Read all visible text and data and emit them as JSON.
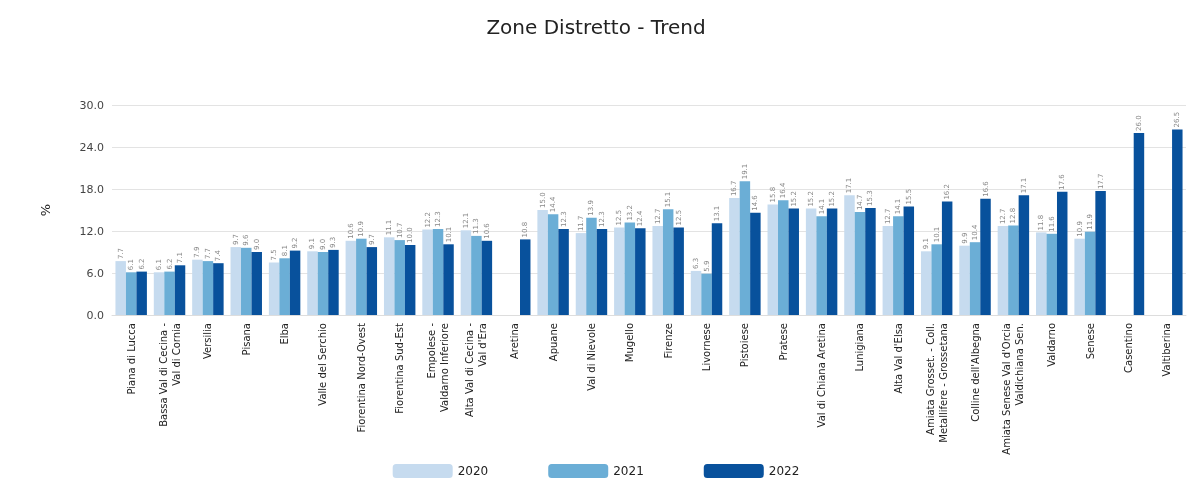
{
  "chart_data": {
    "type": "bar",
    "title": "Zone Distretto - Trend",
    "ylabel": "%",
    "categories": [
      "Piana di Lucca",
      "Bassa Val di Cecina -\nVal di Cornia",
      "Versilia",
      "Pisana",
      "Elba",
      "Valle del Serchio",
      "Fiorentina Nord-Ovest",
      "Fiorentina Sud-Est",
      "Empolese -\nValdarno Inferiore",
      "Alta Val di Cecina -\nVal d'Era",
      "Aretina",
      "Apuane",
      "Val di Nievole",
      "Mugello",
      "Firenze",
      "Livornese",
      "Pistoiese",
      "Pratese",
      "Val di Chiana Aretina",
      "Lunigiana",
      "Alta Val d'Elsa",
      "Amiata Grosset. - Coll.\nMetallifere - Grossetana",
      "Colline dell'Albegna",
      "Amiata Senese Val d'Orcia\nValdichiana Sen.",
      "Valdarno",
      "Senese",
      "Casentino",
      "Valtiberina"
    ],
    "series": [
      {
        "name": "2020",
        "color": "#c6dbef",
        "values": [
          7.7,
          6.1,
          7.9,
          9.7,
          7.5,
          9.1,
          10.6,
          11.1,
          12.2,
          12.1,
          null,
          15.0,
          11.7,
          12.5,
          12.7,
          6.3,
          16.7,
          15.8,
          15.2,
          17.1,
          12.7,
          9.1,
          9.9,
          12.7,
          11.8,
          10.9,
          null,
          null
        ],
        "value_labels": [
          "7.7",
          "6.1",
          "7.9",
          "9.7",
          "7.5",
          "9.1",
          "10.6",
          "11.1",
          "12.2",
          "12.1",
          null,
          "15.0",
          "11.7",
          "12.5",
          "12.7",
          "6.3",
          "16.7",
          "15.8",
          "15.2",
          "17.1",
          "12.7",
          "9.1",
          "9.9",
          "12.7",
          "11.8",
          "10.9",
          null,
          null
        ]
      },
      {
        "name": "2021",
        "color": "#6baed6",
        "values": [
          6.1,
          6.2,
          7.7,
          9.6,
          8.1,
          9.0,
          10.9,
          10.7,
          12.3,
          11.3,
          null,
          14.4,
          13.9,
          13.2,
          15.1,
          5.9,
          19.1,
          16.4,
          14.1,
          14.7,
          14.1,
          10.1,
          10.4,
          12.8,
          11.6,
          11.9,
          null,
          null
        ],
        "value_labels": [
          "6.1",
          "6.2",
          "7.7",
          "9.6",
          "8.1",
          "9.0",
          "10.9",
          "10.7",
          "12.3",
          "11.3",
          null,
          "14.4",
          "13.9",
          "13.2",
          "15.1",
          "5.9",
          "19.1",
          "16.4",
          "14.1",
          "14.7",
          "14.1",
          "10.1",
          "10.4",
          "12.8",
          "11.6",
          "11.9",
          null,
          null
        ]
      },
      {
        "name": "2022",
        "color": "#08519c",
        "values": [
          6.2,
          7.1,
          7.4,
          9.0,
          9.2,
          9.3,
          9.7,
          10.0,
          10.1,
          10.6,
          10.8,
          12.3,
          12.3,
          12.4,
          12.5,
          13.1,
          14.6,
          15.2,
          15.2,
          15.3,
          15.5,
          16.2,
          16.6,
          17.1,
          17.6,
          17.7,
          26.0,
          26.5
        ],
        "value_labels": [
          "6.2",
          "7.1",
          "7.4",
          "9.0",
          "9.2",
          "9.3",
          "9.7",
          "10.0",
          "10.1",
          "10.6",
          "10.8",
          "12.3",
          "12.3",
          "12.4",
          "12.5",
          "13.1",
          "14.6",
          "15.2",
          "15.2",
          "15.3",
          "15.5",
          "16.2",
          "16.6",
          "17.1",
          "17.6",
          "17.7",
          "26.0",
          "26.5"
        ]
      }
    ],
    "ylim": [
      0,
      30
    ],
    "yticks": [
      {
        "value": 0,
        "label": "0.0"
      },
      {
        "value": 6,
        "label": "6.0"
      },
      {
        "value": 12,
        "label": "12.0"
      },
      {
        "value": 18,
        "label": "18.0"
      },
      {
        "value": 24,
        "label": "24.0"
      },
      {
        "value": 30,
        "label": "30.0"
      }
    ],
    "grid": "y",
    "legend": "bottom"
  }
}
